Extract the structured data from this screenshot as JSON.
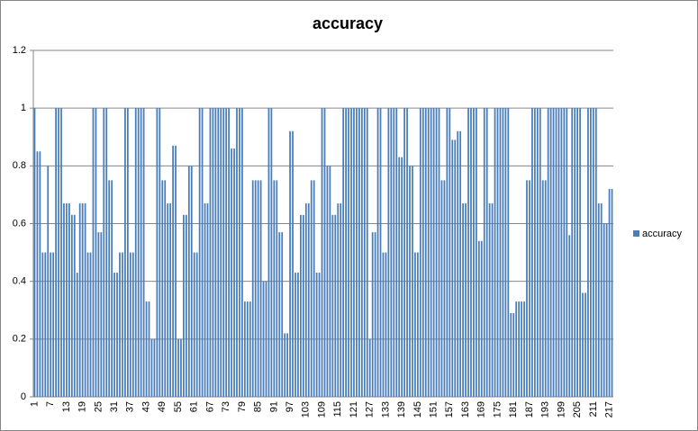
{
  "chart_data": {
    "type": "bar",
    "title": "accuracy",
    "categories": [
      1,
      null,
      null,
      null,
      null,
      null,
      7,
      null,
      null,
      null,
      null,
      null,
      13,
      null,
      null,
      null,
      null,
      null,
      19,
      null,
      null,
      null,
      null,
      null,
      25,
      null,
      null,
      null,
      null,
      null,
      31,
      null,
      null,
      null,
      null,
      null,
      37,
      null,
      null,
      null,
      null,
      null,
      43,
      null,
      null,
      null,
      null,
      null,
      49,
      null,
      null,
      null,
      null,
      null,
      55,
      null,
      null,
      null,
      null,
      null,
      61,
      null,
      null,
      null,
      null,
      null,
      67,
      null,
      null,
      null,
      null,
      null,
      73,
      null,
      null,
      null,
      null,
      null,
      79,
      null,
      null,
      null,
      null,
      null,
      85,
      null,
      null,
      null,
      null,
      null,
      91,
      null,
      null,
      null,
      null,
      null,
      97,
      null,
      null,
      null,
      null,
      null,
      103,
      null,
      null,
      null,
      null,
      null,
      109,
      null,
      null,
      null,
      null,
      null,
      115,
      null,
      null,
      null,
      null,
      null,
      121,
      null,
      null,
      null,
      null,
      null,
      127,
      null,
      null,
      null,
      null,
      null,
      133,
      null,
      null,
      null,
      null,
      null,
      139,
      null,
      null,
      null,
      null,
      null,
      145,
      null,
      null,
      null,
      null,
      null,
      151,
      null,
      null,
      null,
      null,
      null,
      157,
      null,
      null,
      null,
      null,
      null,
      163,
      null,
      null,
      null,
      null,
      null,
      169,
      null,
      null,
      null,
      null,
      null,
      175,
      null,
      null,
      null,
      null,
      null,
      181,
      null,
      null,
      null,
      null,
      null,
      187,
      null,
      null,
      null,
      null,
      null,
      193,
      null,
      null,
      null,
      null,
      null,
      199,
      null,
      null,
      null,
      null,
      null,
      205,
      null,
      null,
      null,
      null,
      null,
      211,
      null,
      null,
      null,
      null,
      null,
      217,
      null
    ],
    "series": [
      {
        "name": "accuracy",
        "color": "#4a7ebb",
        "values": [
          1,
          0.85,
          0.85,
          0.5,
          0.5,
          0.8,
          0.5,
          0.5,
          1,
          1,
          1,
          0.67,
          0.67,
          0.67,
          0.63,
          0.63,
          0.43,
          0.67,
          0.67,
          0.67,
          0.5,
          0.5,
          1,
          1,
          0.57,
          0.57,
          1,
          1,
          0.75,
          0.75,
          0.43,
          0.43,
          0.5,
          0.5,
          1,
          1,
          0.5,
          0.5,
          1,
          1,
          1,
          1,
          0.33,
          0.33,
          0.2,
          0.2,
          1,
          1,
          0.75,
          0.75,
          0.67,
          0.67,
          0.87,
          0.87,
          0.2,
          0.2,
          0.63,
          0.63,
          0.8,
          0.8,
          0.5,
          0.5,
          1,
          1,
          0.67,
          0.67,
          1,
          1,
          1,
          1,
          1,
          1,
          1,
          1,
          0.86,
          0.86,
          1,
          1,
          1,
          0.33,
          0.33,
          0.33,
          0.75,
          0.75,
          0.75,
          0.75,
          0.4,
          0.4,
          1,
          1,
          0.75,
          0.75,
          0.57,
          0.57,
          0.22,
          0.22,
          0.92,
          0.92,
          0.43,
          0.43,
          0.63,
          0.63,
          0.67,
          0.67,
          0.75,
          0.75,
          0.43,
          0.43,
          1,
          1,
          0.8,
          0.8,
          0.63,
          0.63,
          0.67,
          0.67,
          1,
          1,
          1,
          1,
          1,
          1,
          1,
          1,
          1,
          1,
          0.2,
          0.57,
          0.57,
          1,
          1,
          0.5,
          0.5,
          1,
          1,
          1,
          1,
          0.83,
          0.83,
          1,
          1,
          0.8,
          0.8,
          0.5,
          0.5,
          1,
          1,
          1,
          1,
          1,
          1,
          1,
          1,
          0.75,
          0.75,
          1,
          1,
          0.89,
          0.89,
          0.92,
          0.92,
          0.67,
          0.67,
          1,
          1,
          1,
          1,
          0.54,
          0.54,
          1,
          1,
          0.67,
          0.67,
          1,
          1,
          1,
          1,
          1,
          1,
          0.29,
          0.29,
          0.33,
          0.33,
          0.33,
          0.33,
          0.75,
          0.75,
          1,
          1,
          1,
          1,
          0.75,
          0.75,
          1,
          1,
          1,
          1,
          1,
          1,
          1,
          1,
          0.56,
          1,
          1,
          1,
          1,
          0.36,
          0.36,
          1,
          1,
          1,
          1,
          0.67,
          0.67,
          0.6,
          0.6,
          0.72,
          0.72
        ]
      }
    ],
    "ylim": [
      0,
      1.2
    ],
    "yticks": [
      0,
      0.2,
      0.4,
      0.6,
      0.8,
      1,
      1.2
    ],
    "grid": true,
    "legend": "right"
  }
}
